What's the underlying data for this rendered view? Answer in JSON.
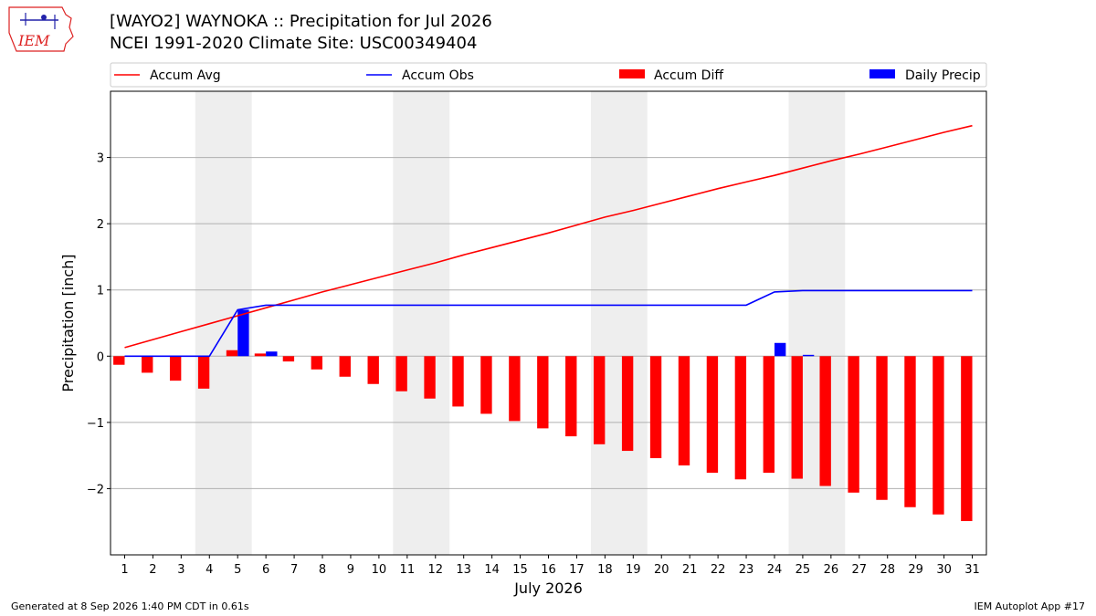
{
  "header": {
    "title_line1": "[WAYO2] WAYNOKA :: Precipitation for Jul 2026",
    "title_line2": "NCEI 1991-2020 Climate Site: USC00349404",
    "logo_text": "IEM"
  },
  "footer": {
    "generated": "Generated at 8 Sep 2026 1:40 PM CDT in 0.61s",
    "app": "IEM Autoplot App #17"
  },
  "colors": {
    "accum_avg": "#ff0000",
    "accum_obs": "#0000ff",
    "accum_diff": "#ff0000",
    "daily_precip": "#0000ff",
    "weekend_shade": "#eeeeee",
    "grid": "#b0b0b0"
  },
  "chart_data": {
    "type": "bar",
    "xlabel": "July 2026",
    "ylabel": "Precipitation [inch]",
    "x": [
      1,
      2,
      3,
      4,
      5,
      6,
      7,
      8,
      9,
      10,
      11,
      12,
      13,
      14,
      15,
      16,
      17,
      18,
      19,
      20,
      21,
      22,
      23,
      24,
      25,
      26,
      27,
      28,
      29,
      30,
      31
    ],
    "xlim": [
      0.5,
      31.5
    ],
    "ylim": [
      -3.0,
      4.0
    ],
    "yticks": [
      -2,
      -1,
      0,
      1,
      2,
      3
    ],
    "ytick_labels": [
      "−2",
      "−1",
      "0",
      "1",
      "2",
      "3"
    ],
    "grid": "horizontal",
    "legend_position": "top",
    "shaded_x_ranges": [
      [
        3.5,
        5.5
      ],
      [
        10.5,
        12.5
      ],
      [
        17.5,
        19.5
      ],
      [
        24.5,
        26.5
      ]
    ],
    "series": [
      {
        "name": "Accum Avg",
        "kind": "line",
        "values": [
          0.13,
          0.25,
          0.37,
          0.49,
          0.61,
          0.73,
          0.85,
          0.97,
          1.08,
          1.19,
          1.3,
          1.41,
          1.53,
          1.64,
          1.75,
          1.86,
          1.98,
          2.1,
          2.2,
          2.31,
          2.42,
          2.53,
          2.63,
          2.73,
          2.84,
          2.95,
          3.05,
          3.16,
          3.27,
          3.38,
          3.48
        ]
      },
      {
        "name": "Accum Obs",
        "kind": "line",
        "values": [
          0,
          0,
          0,
          0,
          0.7,
          0.77,
          0.77,
          0.77,
          0.77,
          0.77,
          0.77,
          0.77,
          0.77,
          0.77,
          0.77,
          0.77,
          0.77,
          0.77,
          0.77,
          0.77,
          0.77,
          0.77,
          0.77,
          0.97,
          0.99,
          0.99,
          0.99,
          0.99,
          0.99,
          0.99,
          0.99
        ]
      },
      {
        "name": "Accum Diff",
        "kind": "bar",
        "values": [
          -0.13,
          -0.25,
          -0.37,
          -0.49,
          0.09,
          0.04,
          -0.08,
          -0.2,
          -0.31,
          -0.42,
          -0.53,
          -0.64,
          -0.76,
          -0.87,
          -0.98,
          -1.09,
          -1.21,
          -1.33,
          -1.43,
          -1.54,
          -1.65,
          -1.76,
          -1.86,
          -1.76,
          -1.85,
          -1.96,
          -2.06,
          -2.17,
          -2.28,
          -2.39,
          -2.49
        ]
      },
      {
        "name": "Daily Precip",
        "kind": "bar",
        "values": [
          0,
          0,
          0,
          0,
          0.7,
          0.07,
          0,
          0,
          0,
          0,
          0,
          0,
          0,
          0,
          0,
          0,
          0,
          0,
          0,
          0,
          0,
          0,
          0,
          0.2,
          0.02,
          0,
          0,
          0,
          0,
          0,
          0
        ]
      }
    ]
  }
}
